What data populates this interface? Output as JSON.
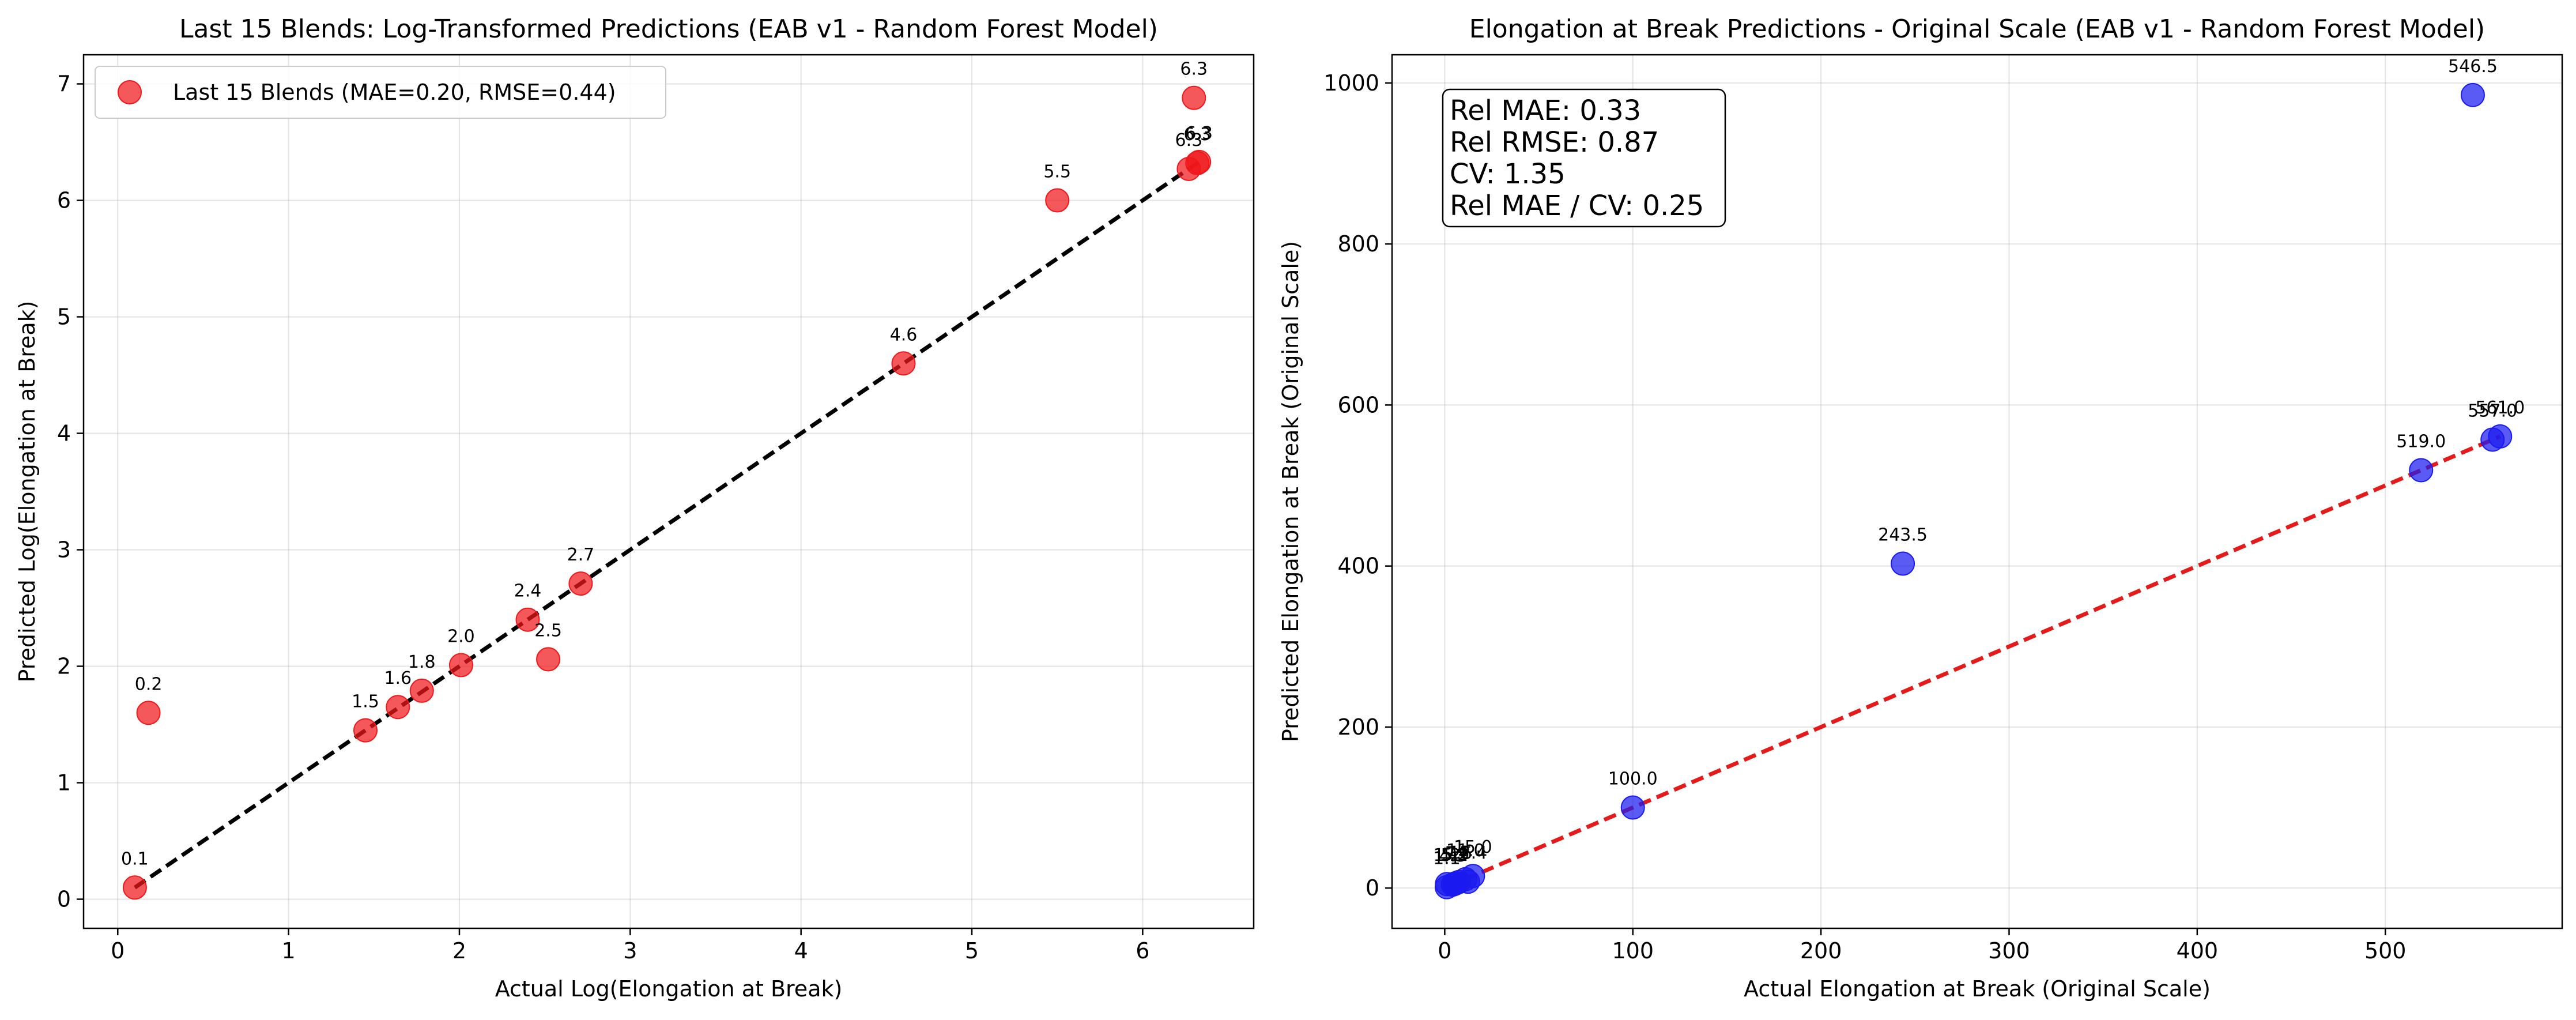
{
  "chart_data": [
    {
      "type": "scatter",
      "title": "Last 15 Blends: Log-Transformed Predictions (EAB v1 - Random Forest Model)",
      "xlabel": "Actual Log(Elongation at Break)",
      "ylabel": "Predicted Log(Elongation at Break)",
      "xlim": [
        -0.2,
        6.65
      ],
      "ylim": [
        -0.25,
        7.25
      ],
      "xticks": [
        0,
        1,
        2,
        3,
        4,
        5,
        6
      ],
      "yticks": [
        0,
        1,
        2,
        3,
        4,
        5,
        6,
        7
      ],
      "grid": true,
      "legend": {
        "placement": "top-left",
        "entries": [
          "Last 15 Blends (MAE=0.20, RMSE=0.44)"
        ]
      },
      "series": [
        {
          "name": "Last 15 Blends (MAE=0.20, RMSE=0.44)",
          "color": "#f0181a",
          "x": [
            0.1,
            0.18,
            1.45,
            1.64,
            1.78,
            2.01,
            2.4,
            2.52,
            2.71,
            4.6,
            5.5,
            6.27,
            6.3,
            6.32,
            6.33
          ],
          "y": [
            0.1,
            1.6,
            1.45,
            1.65,
            1.79,
            2.01,
            2.4,
            2.06,
            2.71,
            4.6,
            6.0,
            6.27,
            6.88,
            6.32,
            6.33
          ],
          "labels": [
            "0.1",
            "0.2",
            "1.5",
            "1.6",
            "1.8",
            "2.0",
            "2.4",
            "2.5",
            "2.7",
            "4.6",
            "5.5",
            "6.3",
            "6.3",
            "6.3",
            "6.3"
          ]
        }
      ],
      "reference_line": {
        "color": "#000000",
        "x": [
          0.1,
          6.33
        ],
        "y": [
          0.1,
          6.33
        ]
      }
    },
    {
      "type": "scatter",
      "title": "Elongation at Break Predictions - Original Scale (EAB v1 - Random Forest Model)",
      "xlabel": "Actual Elongation at Break (Original Scale)",
      "ylabel": "Predicted Elongation at Break (Original Scale)",
      "xlim": [
        -28,
        594
      ],
      "ylim": [
        -50,
        1035
      ],
      "xticks": [
        0,
        100,
        200,
        300,
        400,
        500
      ],
      "yticks": [
        0,
        200,
        400,
        600,
        800,
        1000
      ],
      "grid": true,
      "stats_box": {
        "placement": "top-left",
        "lines": [
          "Rel MAE: 0.33",
          "Rel RMSE: 0.87",
          "CV: 1.35",
          "Rel MAE / CV: 0.25"
        ]
      },
      "series": [
        {
          "color": "#1a1af0",
          "x": [
            1.1,
            1.2,
            4.3,
            5.2,
            5.9,
            7.5,
            11.0,
            12.4,
            15.0,
            100.0,
            243.5,
            519.0,
            546.5,
            557.0,
            561.0
          ],
          "y": [
            1.1,
            5.0,
            4.3,
            5.2,
            6.0,
            7.5,
            11.0,
            7.9,
            15.0,
            100.0,
            403.0,
            519.0,
            985.0,
            557.0,
            561.0
          ],
          "labels": [
            "1.1",
            "1.2",
            "4.3",
            "5.2",
            "5.9",
            "7.5",
            "11.0",
            "12.4",
            "15.0",
            "100.0",
            "243.5",
            "519.0",
            "546.5",
            "557.0",
            "561.0"
          ]
        }
      ],
      "reference_line": {
        "color": "#e51a1a",
        "x": [
          1.1,
          561.0
        ],
        "y": [
          1.1,
          561.0
        ]
      }
    }
  ]
}
